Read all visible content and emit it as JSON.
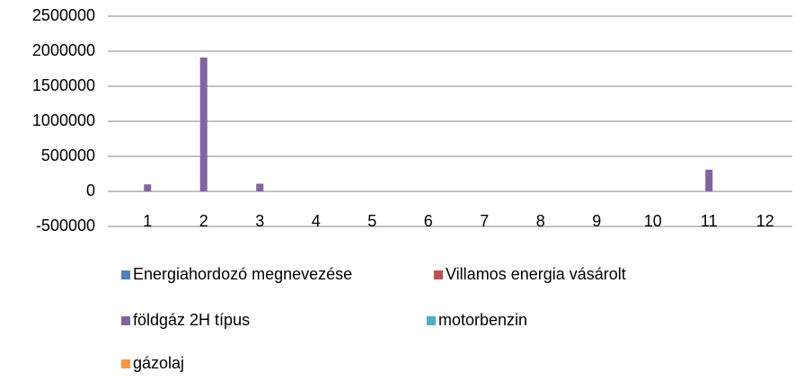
{
  "chart_data": {
    "type": "bar",
    "categories": [
      "1",
      "2",
      "3",
      "4",
      "5",
      "6",
      "7",
      "8",
      "9",
      "10",
      "11",
      "12"
    ],
    "series": [
      {
        "name": "Energiahordozó megnevezése",
        "color": "#4f81bd",
        "values": [
          0,
          0,
          0,
          0,
          0,
          0,
          0,
          0,
          0,
          0,
          0,
          0
        ]
      },
      {
        "name": "Villamos energia vásárolt",
        "color": "#c0504d",
        "values": [
          0,
          0,
          0,
          0,
          0,
          0,
          0,
          0,
          0,
          0,
          0,
          0
        ]
      },
      {
        "name": "földgáz 2H típus",
        "color": "#8064a2",
        "values": [
          100000,
          1910000,
          110000,
          0,
          0,
          0,
          0,
          0,
          0,
          0,
          310000,
          0
        ]
      },
      {
        "name": "motorbenzin",
        "color": "#4bacc6",
        "values": [
          0,
          0,
          0,
          0,
          0,
          0,
          0,
          0,
          0,
          0,
          0,
          0
        ]
      },
      {
        "name": "gázolaj",
        "color": "#f79646",
        "values": [
          0,
          0,
          0,
          0,
          0,
          0,
          0,
          0,
          0,
          0,
          0,
          0
        ]
      }
    ],
    "ylim": [
      -500000,
      2500000
    ],
    "yticks": [
      -500000,
      0,
      500000,
      1000000,
      1500000,
      2000000,
      2500000
    ],
    "grid": true,
    "legend": "bottom"
  }
}
